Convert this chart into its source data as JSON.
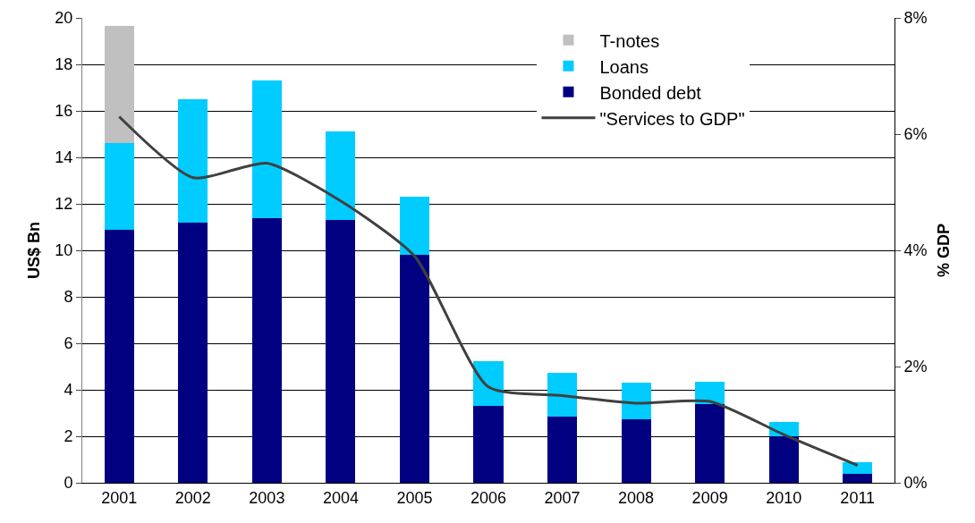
{
  "chart_data": {
    "type": "bar",
    "stacked": true,
    "ylabel": "US$ Bn",
    "y2label": "% GDP",
    "categories": [
      "2001",
      "2002",
      "2003",
      "2004",
      "2005",
      "2006",
      "2007",
      "2008",
      "2009",
      "2010",
      "2011"
    ],
    "series": [
      {
        "name": "Bonded debt",
        "color": "#000080",
        "values": [
          10.9,
          11.2,
          11.4,
          11.3,
          9.8,
          3.3,
          2.85,
          2.75,
          3.4,
          2.0,
          0.4
        ]
      },
      {
        "name": "Loans",
        "color": "#00ccff",
        "values": [
          3.7,
          5.3,
          5.9,
          3.8,
          2.5,
          1.95,
          1.9,
          1.55,
          0.95,
          0.6,
          0.5
        ]
      },
      {
        "name": "T-notes",
        "color": "#c0c0c0",
        "values": [
          5.05,
          null,
          null,
          null,
          null,
          null,
          null,
          null,
          null,
          null,
          null
        ]
      },
      {
        "name": "\"Services to GDP\"",
        "type": "line",
        "axis": "y2",
        "color": "#404040",
        "values": [
          6.3,
          5.25,
          5.5,
          4.85,
          3.9,
          1.65,
          1.5,
          1.37,
          1.4,
          0.83,
          0.3
        ]
      }
    ],
    "ylim": [
      0,
      20
    ],
    "yticks": [
      0,
      2,
      4,
      6,
      8,
      10,
      12,
      14,
      16,
      18,
      20
    ],
    "y2lim": [
      0,
      8
    ],
    "y2ticks": [
      {
        "value": 0,
        "label": "0%"
      },
      {
        "value": 2,
        "label": "2%"
      },
      {
        "value": 4,
        "label": "4%"
      },
      {
        "value": 6,
        "label": "6%"
      },
      {
        "value": 8,
        "label": "8%"
      }
    ],
    "grid": "y",
    "legend": "top right",
    "marker": "none",
    "line_style": "solid"
  }
}
